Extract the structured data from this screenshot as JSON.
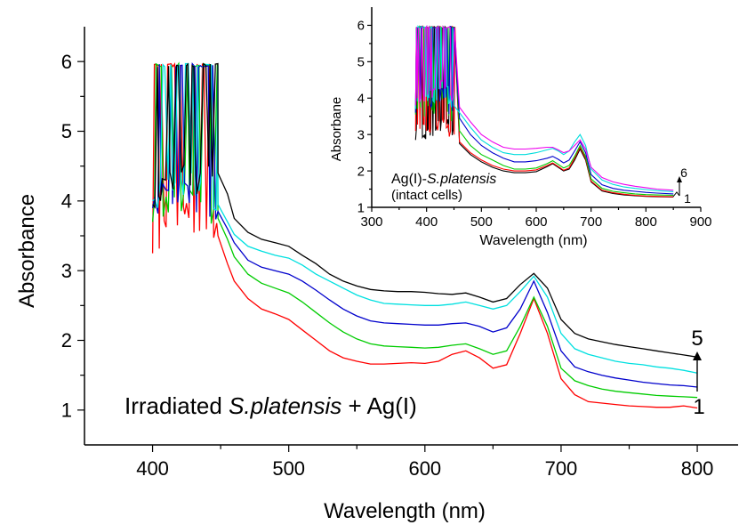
{
  "chart_data": [
    {
      "type": "line",
      "title": "",
      "xlabel": "Wavelength (nm)",
      "ylabel": "Absorbance",
      "xlim": [
        350,
        830
      ],
      "ylim": [
        0.5,
        6.5
      ],
      "x_ticks": [
        400,
        500,
        600,
        700,
        800
      ],
      "y_ticks": [
        1,
        2,
        3,
        4,
        5,
        6
      ],
      "x_tick_labels": [
        "400",
        "500",
        "600",
        "700",
        "800"
      ],
      "y_tick_labels": [
        "1",
        "2",
        "3",
        "4",
        "5",
        "6"
      ],
      "annotation": {
        "prefix": "Irradiated ",
        "species": "S.platensis",
        "suffix": " + Ag(I)"
      },
      "arrow_labels": {
        "top": "5",
        "bottom": "1"
      },
      "saturation_region": {
        "x_start": 400,
        "x_end": 448,
        "max_y": 5.97
      },
      "series": [
        {
          "color": "#ff0000",
          "x": [
            400,
            405,
            410,
            420,
            430,
            440,
            448,
            455,
            460,
            470,
            480,
            490,
            500,
            510,
            520,
            530,
            540,
            550,
            560,
            570,
            580,
            590,
            600,
            610,
            620,
            630,
            640,
            650,
            660,
            670,
            680,
            690,
            700,
            710,
            720,
            730,
            740,
            750,
            760,
            770,
            780,
            790,
            800
          ],
          "y": [
            3.25,
            3.45,
            3.6,
            3.8,
            3.85,
            3.72,
            3.5,
            3.1,
            2.85,
            2.6,
            2.45,
            2.38,
            2.3,
            2.15,
            2.0,
            1.85,
            1.75,
            1.7,
            1.66,
            1.66,
            1.67,
            1.68,
            1.67,
            1.7,
            1.8,
            1.85,
            1.75,
            1.6,
            1.65,
            2.1,
            2.6,
            2.1,
            1.45,
            1.22,
            1.12,
            1.1,
            1.08,
            1.06,
            1.05,
            1.04,
            1.04,
            1.06,
            1.03
          ]
        },
        {
          "color": "#00cc00",
          "x": [
            400,
            405,
            410,
            420,
            430,
            440,
            448,
            455,
            460,
            470,
            480,
            490,
            500,
            510,
            520,
            530,
            540,
            550,
            560,
            570,
            580,
            590,
            600,
            610,
            620,
            630,
            640,
            650,
            660,
            670,
            680,
            690,
            700,
            710,
            720,
            730,
            740,
            750,
            760,
            770,
            780,
            790,
            800
          ],
          "y": [
            3.7,
            3.85,
            3.95,
            4.0,
            4.05,
            3.95,
            3.75,
            3.45,
            3.2,
            2.95,
            2.82,
            2.75,
            2.68,
            2.55,
            2.4,
            2.25,
            2.12,
            2.02,
            1.95,
            1.92,
            1.91,
            1.9,
            1.89,
            1.9,
            1.93,
            1.95,
            1.88,
            1.8,
            1.85,
            2.2,
            2.62,
            2.2,
            1.6,
            1.42,
            1.35,
            1.3,
            1.27,
            1.25,
            1.23,
            1.21,
            1.2,
            1.19,
            1.18
          ]
        },
        {
          "color": "#0000cc",
          "x": [
            400,
            405,
            410,
            420,
            430,
            440,
            448,
            455,
            460,
            470,
            480,
            490,
            500,
            510,
            520,
            530,
            540,
            550,
            560,
            570,
            580,
            590,
            600,
            610,
            620,
            630,
            640,
            650,
            660,
            670,
            680,
            690,
            700,
            710,
            720,
            730,
            740,
            750,
            760,
            770,
            780,
            790,
            800
          ],
          "y": [
            3.9,
            4.0,
            4.05,
            4.1,
            4.1,
            4.0,
            3.85,
            3.6,
            3.4,
            3.15,
            3.05,
            3.0,
            2.95,
            2.85,
            2.72,
            2.58,
            2.45,
            2.35,
            2.28,
            2.25,
            2.24,
            2.23,
            2.22,
            2.22,
            2.24,
            2.25,
            2.2,
            2.12,
            2.18,
            2.45,
            2.85,
            2.4,
            1.85,
            1.62,
            1.55,
            1.5,
            1.46,
            1.43,
            1.4,
            1.38,
            1.36,
            1.35,
            1.33
          ]
        },
        {
          "color": "#00e0e0",
          "x": [
            400,
            405,
            410,
            420,
            430,
            440,
            448,
            455,
            460,
            470,
            480,
            490,
            500,
            510,
            520,
            530,
            540,
            550,
            560,
            570,
            580,
            590,
            600,
            610,
            620,
            630,
            640,
            650,
            660,
            670,
            680,
            690,
            700,
            710,
            720,
            730,
            740,
            750,
            760,
            770,
            780,
            790,
            800
          ],
          "y": [
            4.0,
            4.1,
            4.15,
            4.2,
            4.2,
            4.1,
            3.95,
            3.7,
            3.52,
            3.35,
            3.28,
            3.22,
            3.18,
            3.08,
            2.95,
            2.85,
            2.75,
            2.65,
            2.58,
            2.53,
            2.52,
            2.51,
            2.5,
            2.5,
            2.52,
            2.55,
            2.5,
            2.45,
            2.5,
            2.7,
            2.92,
            2.62,
            2.1,
            1.88,
            1.8,
            1.75,
            1.7,
            1.67,
            1.65,
            1.62,
            1.6,
            1.57,
            1.53
          ]
        },
        {
          "color": "#000000",
          "x": [
            400,
            405,
            410,
            420,
            430,
            440,
            448,
            455,
            460,
            470,
            480,
            490,
            500,
            510,
            520,
            530,
            540,
            550,
            560,
            570,
            580,
            590,
            600,
            610,
            620,
            630,
            640,
            650,
            660,
            670,
            680,
            690,
            700,
            710,
            720,
            730,
            740,
            750,
            760,
            770,
            780,
            790,
            800
          ],
          "y": [
            3.95,
            4.1,
            4.2,
            4.3,
            4.35,
            4.25,
            4.4,
            4.1,
            3.75,
            3.55,
            3.45,
            3.4,
            3.35,
            3.22,
            3.1,
            2.95,
            2.85,
            2.78,
            2.73,
            2.71,
            2.7,
            2.7,
            2.69,
            2.67,
            2.66,
            2.68,
            2.62,
            2.55,
            2.6,
            2.8,
            2.96,
            2.75,
            2.3,
            2.1,
            2.02,
            1.98,
            1.94,
            1.91,
            1.88,
            1.85,
            1.82,
            1.79,
            1.76
          ]
        }
      ]
    },
    {
      "type": "line",
      "title": "",
      "xlabel": "Wavelength (nm)",
      "ylabel": "Absorbane",
      "xlim": [
        300,
        900
      ],
      "ylim": [
        1,
        6.5
      ],
      "x_ticks": [
        300,
        400,
        500,
        600,
        700,
        800,
        900
      ],
      "y_ticks": [
        1,
        2,
        3,
        4,
        5,
        6
      ],
      "x_tick_labels": [
        "300",
        "400",
        "500",
        "600",
        "700",
        "800",
        "900"
      ],
      "y_tick_labels": [
        "1",
        "2",
        "3",
        "4",
        "5",
        "6"
      ],
      "annotation": {
        "prefix": "Ag(I)-",
        "species": "S.platensis",
        "line2": "(intact cells)"
      },
      "arrow_labels": {
        "top": "6",
        "bottom": "1"
      },
      "saturation_region": {
        "x_start": 380,
        "x_end": 452,
        "max_y": 5.97
      },
      "series": [
        {
          "color": "#000000",
          "x": [
            380,
            400,
            420,
            440,
            450,
            460,
            480,
            500,
            520,
            540,
            560,
            580,
            600,
            620,
            630,
            640,
            650,
            660,
            670,
            680,
            690,
            700,
            720,
            740,
            760,
            780,
            800,
            820,
            850
          ],
          "y": [
            2.85,
            3.0,
            3.15,
            3.25,
            3.05,
            2.75,
            2.45,
            2.25,
            2.1,
            2.0,
            1.95,
            1.95,
            1.98,
            2.12,
            2.2,
            2.1,
            2.0,
            2.05,
            2.3,
            2.6,
            2.3,
            1.7,
            1.45,
            1.38,
            1.34,
            1.32,
            1.3,
            1.29,
            1.28
          ]
        },
        {
          "color": "#ff0000",
          "x": [
            380,
            400,
            420,
            440,
            450,
            460,
            480,
            500,
            520,
            540,
            560,
            580,
            600,
            620,
            630,
            640,
            650,
            660,
            670,
            680,
            690,
            700,
            720,
            740,
            760,
            780,
            800,
            820,
            850
          ],
          "y": [
            3.1,
            3.15,
            3.25,
            3.3,
            3.1,
            2.8,
            2.5,
            2.3,
            2.15,
            2.05,
            2.0,
            2.0,
            2.03,
            2.15,
            2.22,
            2.12,
            2.02,
            2.08,
            2.35,
            2.65,
            2.35,
            1.72,
            1.47,
            1.4,
            1.36,
            1.33,
            1.31,
            1.3,
            1.29
          ]
        },
        {
          "color": "#00cc00",
          "x": [
            380,
            400,
            420,
            440,
            450,
            460,
            480,
            500,
            520,
            540,
            560,
            580,
            600,
            620,
            630,
            640,
            650,
            660,
            670,
            680,
            690,
            700,
            720,
            740,
            760,
            780,
            800,
            820,
            850
          ],
          "y": [
            3.55,
            3.6,
            3.75,
            3.8,
            3.45,
            3.1,
            2.7,
            2.45,
            2.3,
            2.15,
            2.05,
            2.05,
            2.08,
            2.2,
            2.28,
            2.18,
            2.08,
            2.15,
            2.4,
            2.7,
            2.4,
            1.78,
            1.52,
            1.44,
            1.4,
            1.37,
            1.35,
            1.34,
            1.33
          ]
        },
        {
          "color": "#0000cc",
          "x": [
            380,
            400,
            420,
            440,
            450,
            460,
            480,
            500,
            520,
            540,
            560,
            580,
            600,
            620,
            630,
            640,
            650,
            660,
            670,
            680,
            690,
            700,
            720,
            740,
            760,
            780,
            800,
            820,
            850
          ],
          "y": [
            3.6,
            3.7,
            3.9,
            4.1,
            3.75,
            3.45,
            3.0,
            2.7,
            2.5,
            2.35,
            2.25,
            2.25,
            2.28,
            2.35,
            2.4,
            2.32,
            2.22,
            2.3,
            2.55,
            2.8,
            2.5,
            1.9,
            1.62,
            1.52,
            1.47,
            1.44,
            1.41,
            1.39,
            1.37
          ]
        },
        {
          "color": "#00dddd",
          "x": [
            380,
            400,
            420,
            440,
            450,
            460,
            480,
            500,
            520,
            540,
            560,
            580,
            600,
            620,
            630,
            640,
            650,
            660,
            670,
            680,
            690,
            700,
            720,
            740,
            760,
            780,
            800,
            820,
            850
          ],
          "y": [
            3.7,
            3.85,
            4.05,
            4.2,
            3.9,
            3.6,
            3.2,
            2.85,
            2.65,
            2.5,
            2.45,
            2.45,
            2.5,
            2.58,
            2.62,
            2.55,
            2.45,
            2.55,
            2.8,
            3.0,
            2.7,
            2.05,
            1.75,
            1.63,
            1.56,
            1.52,
            1.49,
            1.46,
            1.43
          ]
        },
        {
          "color": "#ee00ee",
          "x": [
            380,
            400,
            420,
            440,
            450,
            460,
            480,
            500,
            520,
            540,
            560,
            580,
            600,
            620,
            630,
            640,
            650,
            660,
            670,
            680,
            690,
            700,
            720,
            740,
            760,
            780,
            800,
            820,
            850
          ],
          "y": [
            3.8,
            3.95,
            4.2,
            4.3,
            4.05,
            3.75,
            3.35,
            3.0,
            2.8,
            2.65,
            2.6,
            2.6,
            2.62,
            2.65,
            2.65,
            2.58,
            2.5,
            2.55,
            2.7,
            2.85,
            2.6,
            2.1,
            1.82,
            1.7,
            1.63,
            1.58,
            1.54,
            1.5,
            1.47
          ]
        }
      ]
    }
  ]
}
